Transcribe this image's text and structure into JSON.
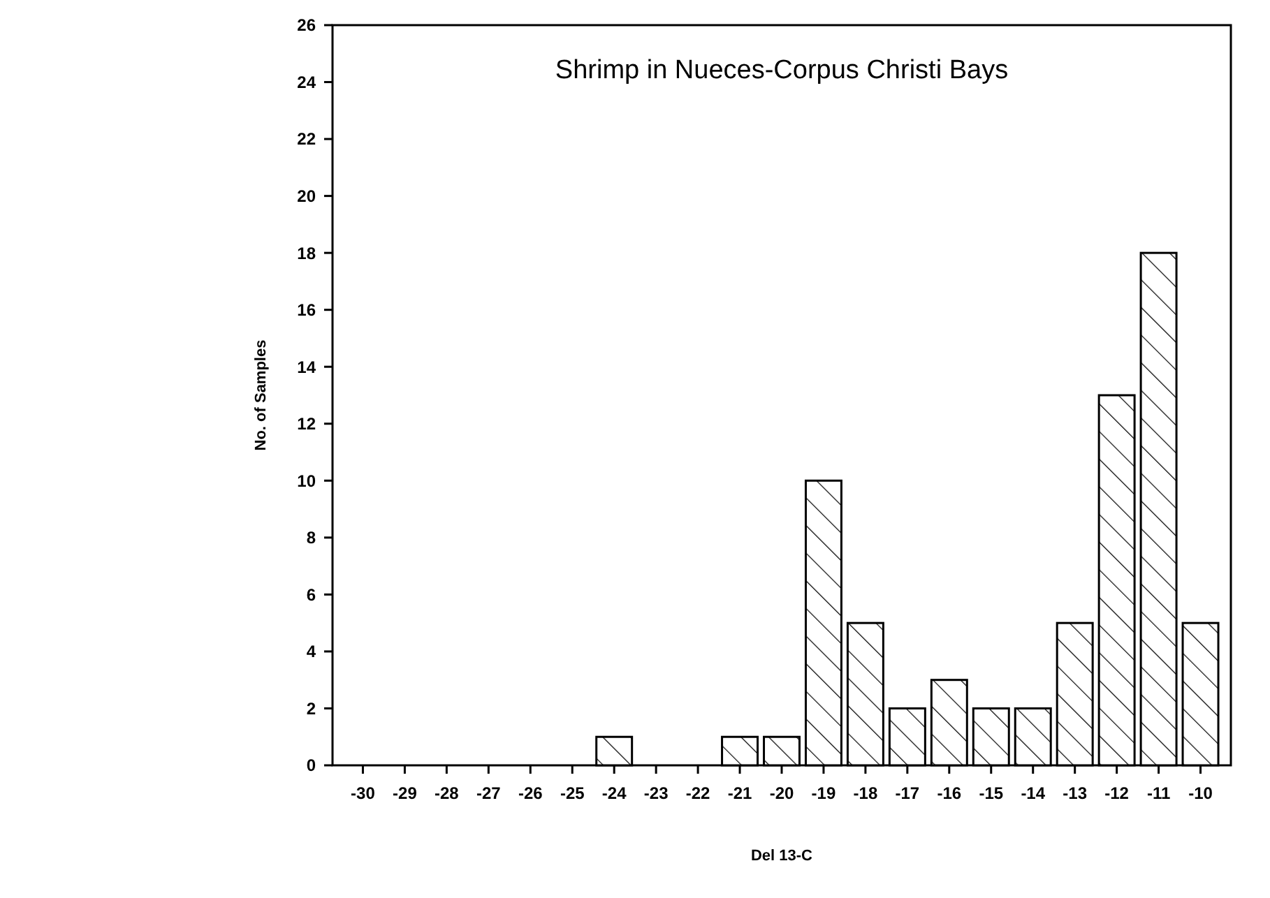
{
  "chart_data": {
    "type": "bar",
    "title": "Shrimp in Nueces-Corpus Christi Bays",
    "xlabel": "Del 13-C",
    "ylabel": "No. of Samples",
    "categories": [
      "-30",
      "-29",
      "-28",
      "-27",
      "-26",
      "-25",
      "-24",
      "-23",
      "-22",
      "-21",
      "-20",
      "-19",
      "-18",
      "-17",
      "-16",
      "-15",
      "-14",
      "-13",
      "-12",
      "-11",
      "-10"
    ],
    "values": [
      0,
      0,
      0,
      0,
      0,
      0,
      1,
      0,
      0,
      1,
      1,
      10,
      5,
      2,
      3,
      2,
      2,
      5,
      13,
      18,
      5
    ],
    "color": "#000000",
    "ylim": [
      0,
      26
    ],
    "yticks": [
      0,
      2,
      4,
      6,
      8,
      10,
      12,
      14,
      16,
      18,
      20,
      22,
      24,
      26
    ],
    "grid": false
  }
}
